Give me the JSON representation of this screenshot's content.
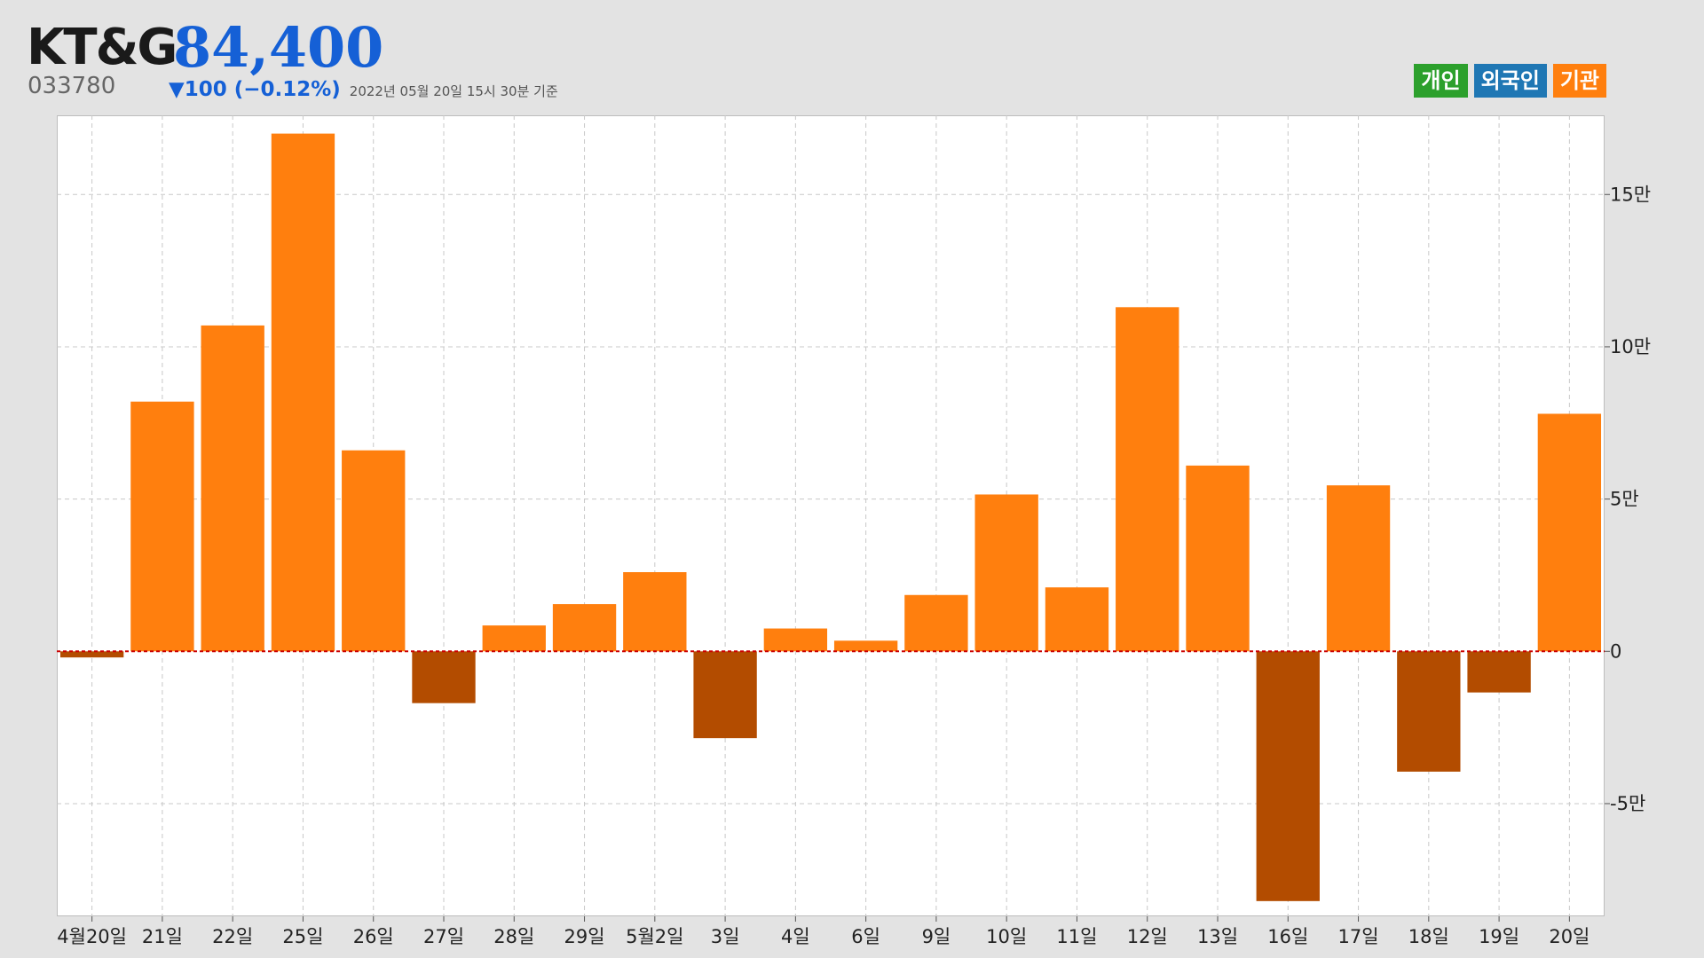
{
  "header": {
    "company": "KT&G",
    "price": "84,400",
    "code": "033780",
    "change": "▼100 (−0.12%)",
    "asof": "2022년 05월 20일 15시 30분 기준"
  },
  "legend": [
    {
      "label": "개인",
      "color": "#2ca02c"
    },
    {
      "label": "외국인",
      "color": "#1f77b4"
    },
    {
      "label": "기관",
      "color": "#ff7f0e"
    }
  ],
  "colors": {
    "positive_bar": "#ff7f0e",
    "negative_bar": "#b34c00",
    "zero_line": "#cc0000",
    "grid": "#c8c8c8"
  },
  "chart_data": {
    "type": "bar",
    "series": [
      {
        "name": "기관",
        "values": [
          -2000,
          82000,
          107000,
          170000,
          66000,
          -17000,
          8500,
          15500,
          26000,
          -28500,
          7500,
          3500,
          18500,
          51500,
          21000,
          113000,
          61000,
          -82000,
          54500,
          -39500,
          -13500,
          78000
        ]
      }
    ],
    "categories": [
      "4월20일",
      "21일",
      "22일",
      "25일",
      "26일",
      "27일",
      "28일",
      "29일",
      "5월2일",
      "3일",
      "4일",
      "6일",
      "9일",
      "10일",
      "11일",
      "12일",
      "13일",
      "16일",
      "17일",
      "18일",
      "19일",
      "20일"
    ],
    "yticks": [
      -50000,
      0,
      50000,
      100000,
      150000
    ],
    "ytick_labels": [
      "-5만",
      "0",
      "5만",
      "10만",
      "15만"
    ],
    "ylim": [
      -87000,
      176000
    ],
    "grid": true,
    "legend_position": "top-right"
  }
}
